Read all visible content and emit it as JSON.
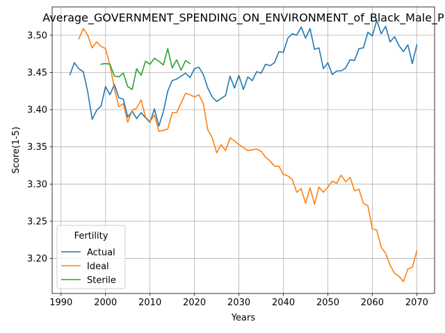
{
  "chart_data": {
    "type": "line",
    "title": "Average_GOVERNMENT_SPENDING_ON_ENVIRONMENT_of_Black_Male_P",
    "xlabel": "Years",
    "ylabel": "Score(1-5)",
    "xlim": [
      1988,
      2074
    ],
    "ylim": [
      3.153,
      3.538
    ],
    "xticks": [
      1990,
      2000,
      2010,
      2020,
      2030,
      2040,
      2050,
      2060,
      2070
    ],
    "yticks": [
      3.2,
      3.25,
      3.3,
      3.35,
      3.4,
      3.45,
      3.5
    ],
    "xtick_labels": [
      "1990",
      "2000",
      "2010",
      "2020",
      "2030",
      "2040",
      "2050",
      "2060",
      "2070"
    ],
    "ytick_labels": [
      "3.20",
      "3.25",
      "3.30",
      "3.35",
      "3.40",
      "3.45",
      "3.50"
    ],
    "grid": true,
    "legend": {
      "title": "Fertility",
      "location": "lower-left"
    },
    "series": [
      {
        "name": "Actual",
        "color": "#1f77b4",
        "x": [
          1992,
          1993,
          1994,
          1995,
          1996,
          1997,
          1998,
          1999,
          2000,
          2001,
          2002,
          2003,
          2004,
          2005,
          2006,
          2007,
          2008,
          2009,
          2010,
          2011,
          2012,
          2013,
          2014,
          2015,
          2016,
          2017,
          2018,
          2019,
          2020,
          2021,
          2022,
          2023,
          2024,
          2025,
          2026,
          2027,
          2028,
          2029,
          2030,
          2031,
          2032,
          2033,
          2034,
          2035,
          2036,
          2037,
          2038,
          2039,
          2040,
          2041,
          2042,
          2043,
          2044,
          2045,
          2046,
          2047,
          2048,
          2049,
          2050,
          2051,
          2052,
          2053,
          2054,
          2055,
          2056,
          2057,
          2058,
          2059,
          2060,
          2061,
          2062,
          2063,
          2064,
          2065,
          2066,
          2067,
          2068,
          2069,
          2070
        ],
        "values": [
          3.447,
          3.463,
          3.455,
          3.451,
          3.424,
          3.387,
          3.399,
          3.405,
          3.431,
          3.42,
          3.434,
          3.416,
          3.414,
          3.39,
          3.398,
          3.388,
          3.396,
          3.389,
          3.383,
          3.401,
          3.378,
          3.397,
          3.425,
          3.439,
          3.441,
          3.445,
          3.449,
          3.443,
          3.455,
          3.457,
          3.447,
          3.429,
          3.417,
          3.411,
          3.415,
          3.419,
          3.445,
          3.429,
          3.446,
          3.427,
          3.444,
          3.439,
          3.451,
          3.449,
          3.461,
          3.459,
          3.463,
          3.478,
          3.477,
          3.496,
          3.502,
          3.5,
          3.511,
          3.496,
          3.509,
          3.481,
          3.483,
          3.455,
          3.463,
          3.447,
          3.452,
          3.452,
          3.456,
          3.467,
          3.466,
          3.482,
          3.483,
          3.504,
          3.499,
          3.52,
          3.502,
          3.512,
          3.491,
          3.498,
          3.486,
          3.478,
          3.487,
          3.462,
          3.487
        ]
      },
      {
        "name": "Ideal",
        "color": "#ff7f0e",
        "x": [
          1994,
          1995,
          1996,
          1997,
          1998,
          1999,
          2000,
          2001,
          2002,
          2003,
          2004,
          2005,
          2006,
          2007,
          2008,
          2009,
          2010,
          2011,
          2012,
          2013,
          2014,
          2015,
          2016,
          2017,
          2018,
          2019,
          2020,
          2021,
          2022,
          2023,
          2024,
          2025,
          2026,
          2027,
          2028,
          2029,
          2030,
          2031,
          2032,
          2033,
          2034,
          2035,
          2036,
          2037,
          2038,
          2039,
          2040,
          2041,
          2042,
          2043,
          2044,
          2045,
          2046,
          2047,
          2048,
          2049,
          2050,
          2051,
          2052,
          2053,
          2054,
          2055,
          2056,
          2057,
          2058,
          2059,
          2060,
          2061,
          2062,
          2063,
          2064,
          2065,
          2066,
          2067,
          2068,
          2069,
          2070
        ],
        "values": [
          3.495,
          3.509,
          3.5,
          3.483,
          3.491,
          3.485,
          3.482,
          3.46,
          3.428,
          3.404,
          3.408,
          3.383,
          3.399,
          3.402,
          3.413,
          3.39,
          3.384,
          3.393,
          3.371,
          3.372,
          3.374,
          3.396,
          3.396,
          3.409,
          3.422,
          3.42,
          3.417,
          3.42,
          3.408,
          3.373,
          3.362,
          3.342,
          3.353,
          3.345,
          3.362,
          3.358,
          3.353,
          3.349,
          3.345,
          3.346,
          3.347,
          3.344,
          3.336,
          3.331,
          3.324,
          3.324,
          3.313,
          3.311,
          3.306,
          3.289,
          3.294,
          3.274,
          3.295,
          3.273,
          3.296,
          3.289,
          3.296,
          3.304,
          3.301,
          3.312,
          3.303,
          3.309,
          3.291,
          3.293,
          3.274,
          3.271,
          3.24,
          3.238,
          3.215,
          3.207,
          3.191,
          3.18,
          3.176,
          3.169,
          3.186,
          3.188,
          3.21
        ]
      },
      {
        "name": "Sterile",
        "color": "#2ca02c",
        "x": [
          1999,
          2000,
          2001,
          2002,
          2003,
          2004,
          2005,
          2006,
          2007,
          2008,
          2009,
          2010,
          2011,
          2012,
          2013,
          2014,
          2015,
          2016,
          2017,
          2018,
          2019
        ],
        "values": [
          3.461,
          3.462,
          3.461,
          3.445,
          3.444,
          3.449,
          3.431,
          3.427,
          3.455,
          3.446,
          3.465,
          3.461,
          3.469,
          3.465,
          3.46,
          3.482,
          3.456,
          3.467,
          3.453,
          3.466,
          3.462
        ]
      }
    ]
  }
}
